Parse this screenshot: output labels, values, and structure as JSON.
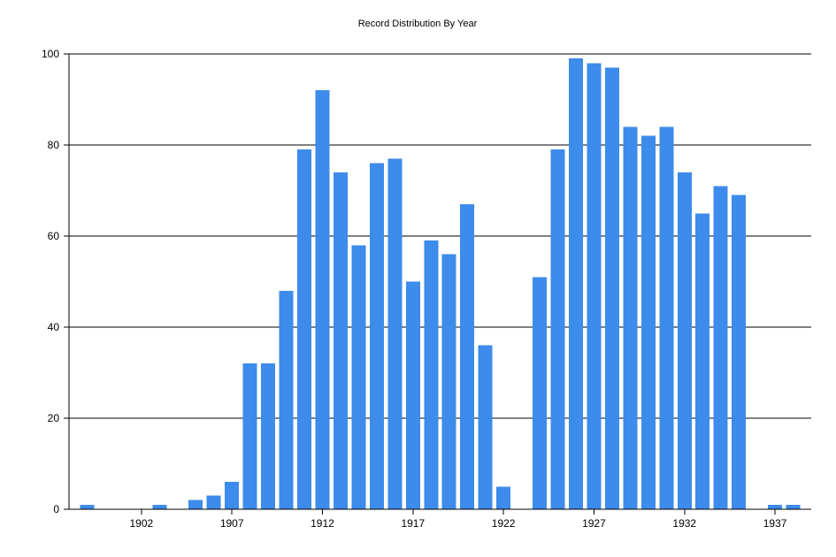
{
  "chart_data": {
    "type": "bar",
    "title": "Record Distribution By Year",
    "xlabel": "",
    "ylabel": "",
    "x": [
      1899,
      1900,
      1901,
      1902,
      1903,
      1904,
      1905,
      1906,
      1907,
      1908,
      1909,
      1910,
      1911,
      1912,
      1913,
      1914,
      1915,
      1916,
      1917,
      1918,
      1919,
      1920,
      1921,
      1922,
      1923,
      1924,
      1925,
      1926,
      1927,
      1928,
      1929,
      1930,
      1931,
      1932,
      1933,
      1934,
      1935,
      1936,
      1937,
      1938
    ],
    "values": [
      1,
      0,
      0,
      0,
      1,
      0,
      2,
      3,
      6,
      32,
      32,
      48,
      79,
      92,
      74,
      58,
      76,
      77,
      50,
      59,
      56,
      67,
      36,
      5,
      0,
      51,
      79,
      99,
      98,
      97,
      84,
      82,
      84,
      74,
      65,
      71,
      69,
      0,
      1,
      1
    ],
    "xlim": [
      1898,
      1939
    ],
    "ylim": [
      0,
      100
    ],
    "x_ticks": [
      "1902",
      "1907",
      "1912",
      "1917",
      "1922",
      "1927",
      "1932",
      "1937"
    ],
    "y_ticks": [
      "0",
      "20",
      "40",
      "60",
      "80",
      "100"
    ],
    "grid": "horizontal",
    "legend": "none",
    "bar_color": "#3D8BEB",
    "grid_color": "#000000"
  }
}
